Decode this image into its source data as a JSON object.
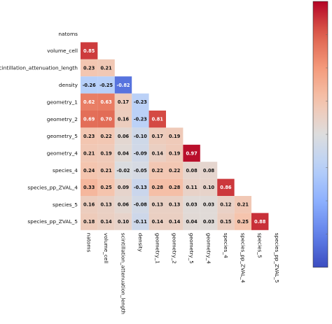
{
  "chart_data": {
    "type": "heatmap",
    "variables": [
      "natoms",
      "volume_cell",
      "scintillation_attenuation_length",
      "density",
      "geometry_1",
      "geometry_2",
      "geometry_5",
      "geometry_4",
      "species_4",
      "species_pp_ZVAL_4",
      "species_5",
      "species_pp_ZVAL_5"
    ],
    "row_labels": [
      "natoms",
      "volume_cell",
      "scintillation_attenuation_length",
      "density",
      "geometry_1",
      "geometry_2",
      "geometry_5",
      "geometry_4",
      "species_4",
      "species_pp_ZVAL_4",
      "species_5",
      "species_pp_ZVAL_5"
    ],
    "col_labels": [
      "natoms",
      "volume_cell",
      "scintillation_attenuation_length",
      "density",
      "geometry_1",
      "geometry_2",
      "geometry_5",
      "geometry_4",
      "species_4",
      "species_pp_ZVAL_4",
      "species_5",
      "species_pp_ZVAL_5"
    ],
    "mask": "upper triangle including diagonal",
    "values": [
      [],
      [
        0.85
      ],
      [
        0.23,
        0.21
      ],
      [
        -0.26,
        -0.25,
        -0.82
      ],
      [
        0.62,
        0.63,
        0.17,
        -0.23
      ],
      [
        0.69,
        0.7,
        0.16,
        -0.23,
        0.81
      ],
      [
        0.23,
        0.22,
        0.06,
        -0.1,
        0.17,
        0.19
      ],
      [
        0.21,
        0.19,
        0.04,
        -0.09,
        0.14,
        0.19,
        0.97
      ],
      [
        0.24,
        0.21,
        -0.02,
        -0.05,
        0.22,
        0.22,
        0.08,
        0.08
      ],
      [
        0.33,
        0.25,
        0.09,
        -0.13,
        0.28,
        0.28,
        0.11,
        0.1,
        0.86
      ],
      [
        0.16,
        0.13,
        0.06,
        -0.08,
        0.13,
        0.13,
        0.03,
        0.03,
        0.12,
        0.21
      ],
      [
        0.18,
        0.14,
        0.1,
        -0.11,
        0.14,
        0.14,
        0.04,
        0.03,
        0.15,
        0.25,
        0.88
      ]
    ],
    "colormap": "coolwarm",
    "colorbar_range": [
      -1,
      1
    ],
    "colorbar_ticks": [],
    "colors": {
      "min": "#3b4cc0",
      "mid": "#dddddd",
      "max": "#b40426"
    }
  }
}
